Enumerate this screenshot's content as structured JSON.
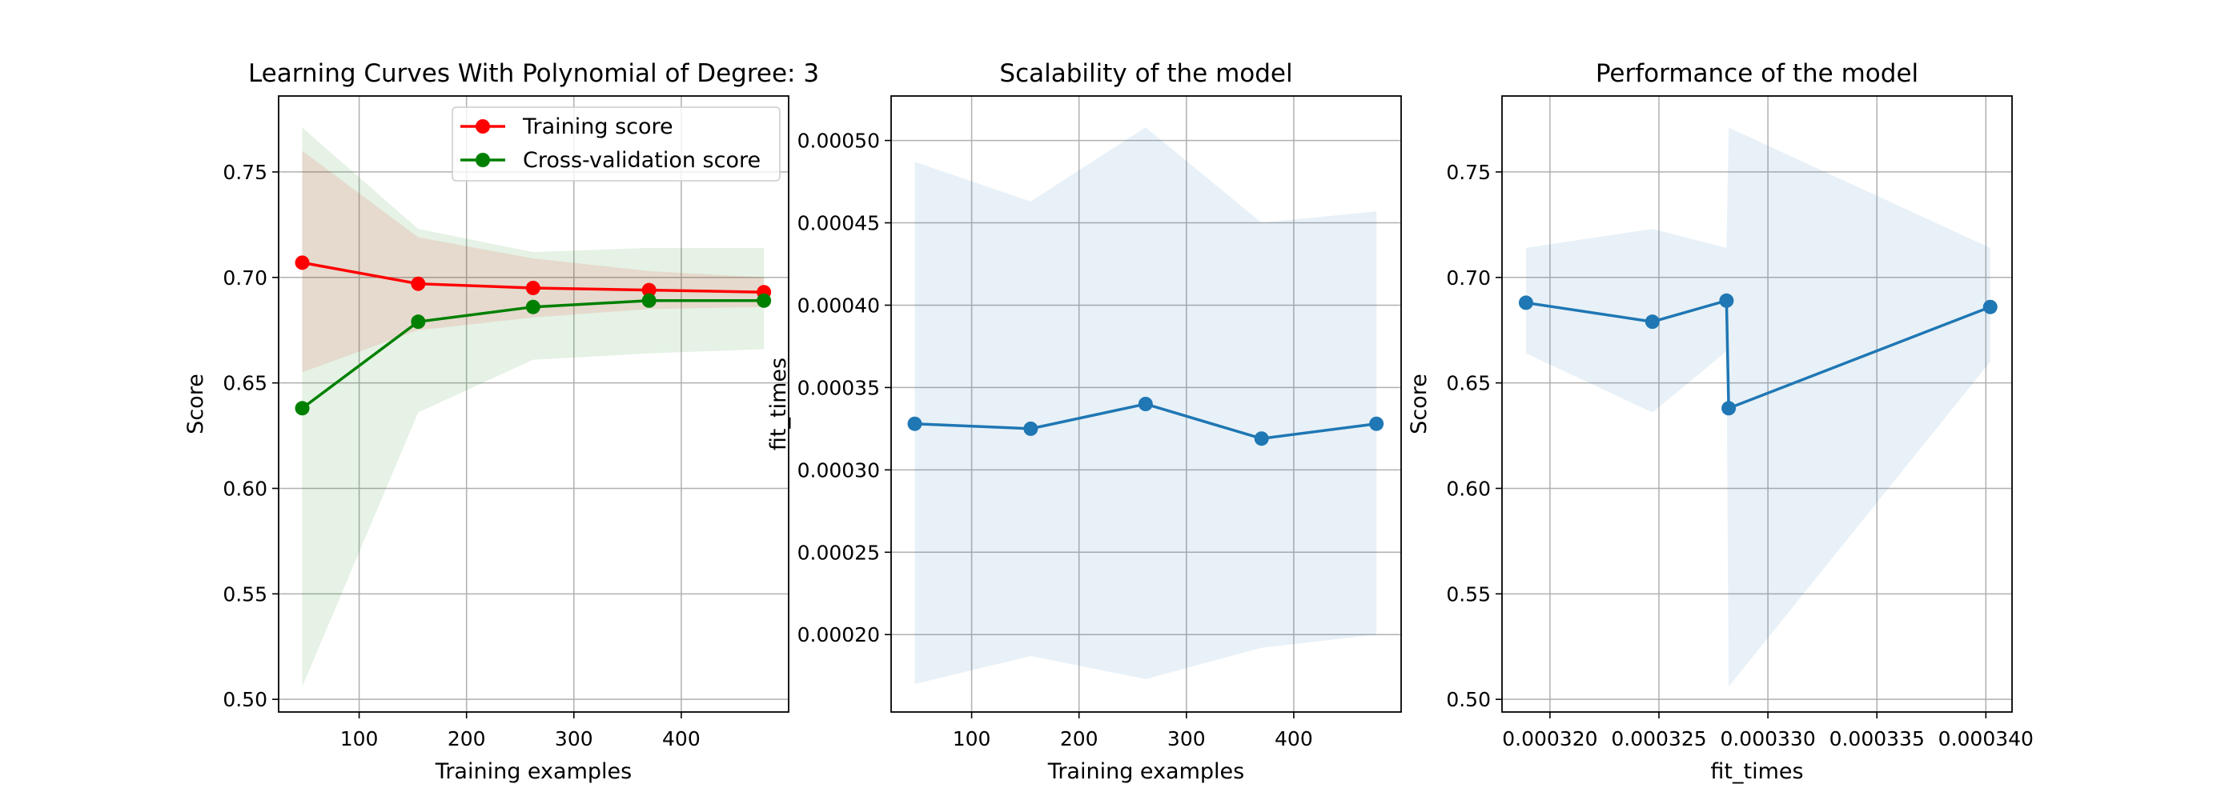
{
  "chart_data": [
    {
      "type": "line",
      "title": "Learning Curves With Polynomial of Degree: 3",
      "xlabel": "Training examples",
      "ylabel": "Score",
      "xlim": [
        25,
        500
      ],
      "ylim": [
        0.494,
        0.786
      ],
      "xticks": [
        100,
        200,
        300,
        400
      ],
      "xtick_labels": [
        "100",
        "200",
        "300",
        "400"
      ],
      "yticks": [
        0.5,
        0.55,
        0.6,
        0.65,
        0.7,
        0.75
      ],
      "ytick_labels": [
        "0.50",
        "0.55",
        "0.60",
        "0.65",
        "0.70",
        "0.75"
      ],
      "grid": true,
      "legend_position": "top-right",
      "x": [
        47,
        155,
        262,
        370,
        477
      ],
      "series": [
        {
          "name": "Training score",
          "color": "#ff0000",
          "values": [
            0.707,
            0.697,
            0.695,
            0.694,
            0.693
          ],
          "band_lower": [
            0.655,
            0.675,
            0.681,
            0.685,
            0.686
          ],
          "band_upper": [
            0.76,
            0.719,
            0.709,
            0.703,
            0.7
          ]
        },
        {
          "name": "Cross-validation score",
          "color": "#008000",
          "values": [
            0.638,
            0.679,
            0.686,
            0.689,
            0.689
          ],
          "band_lower": [
            0.506,
            0.636,
            0.661,
            0.664,
            0.666
          ],
          "band_upper": [
            0.771,
            0.723,
            0.712,
            0.714,
            0.714
          ]
        }
      ]
    },
    {
      "type": "line",
      "title": "Scalability of the model",
      "xlabel": "Training examples",
      "ylabel": "fit_times",
      "xlim": [
        25,
        500
      ],
      "ylim": [
        0.000153,
        0.000527
      ],
      "xticks": [
        100,
        200,
        300,
        400
      ],
      "xtick_labels": [
        "100",
        "200",
        "300",
        "400"
      ],
      "yticks": [
        0.0002,
        0.00025,
        0.0003,
        0.00035,
        0.0004,
        0.00045,
        0.0005
      ],
      "ytick_labels": [
        "0.00020",
        "0.00025",
        "0.00030",
        "0.00035",
        "0.00040",
        "0.00045",
        "0.00050"
      ],
      "grid": true,
      "x": [
        47,
        155,
        262,
        370,
        477
      ],
      "series": [
        {
          "color": "#1f77b4",
          "values": [
            0.000328,
            0.000325,
            0.00034,
            0.000319,
            0.000328
          ],
          "band_lower": [
            0.00017,
            0.000187,
            0.000173,
            0.000192,
            0.0002
          ],
          "band_upper": [
            0.000487,
            0.000463,
            0.000508,
            0.00045,
            0.000457
          ]
        }
      ]
    },
    {
      "type": "line",
      "title": "Performance of the model",
      "xlabel": "fit_times",
      "ylabel": "Score",
      "xlim": [
        0.0003178,
        0.0003412
      ],
      "ylim": [
        0.494,
        0.786
      ],
      "xticks": [
        0.00032,
        0.000325,
        0.00033,
        0.000335,
        0.00034
      ],
      "xtick_labels": [
        "0.000320",
        "0.000325",
        "0.000330",
        "0.000335",
        "0.000340"
      ],
      "yticks": [
        0.5,
        0.55,
        0.6,
        0.65,
        0.7,
        0.75
      ],
      "ytick_labels": [
        "0.50",
        "0.55",
        "0.60",
        "0.65",
        "0.70",
        "0.75"
      ],
      "grid": true,
      "series": [
        {
          "color": "#1f77b4",
          "x": [
            0.0003189,
            0.0003247,
            0.0003281,
            0.0003282,
            0.0003402
          ],
          "values": [
            0.688,
            0.679,
            0.689,
            0.638,
            0.686
          ],
          "band_lower": [
            0.664,
            0.636,
            0.665,
            0.506,
            0.66
          ],
          "band_upper": [
            0.714,
            0.723,
            0.714,
            0.771,
            0.714
          ]
        }
      ]
    }
  ]
}
